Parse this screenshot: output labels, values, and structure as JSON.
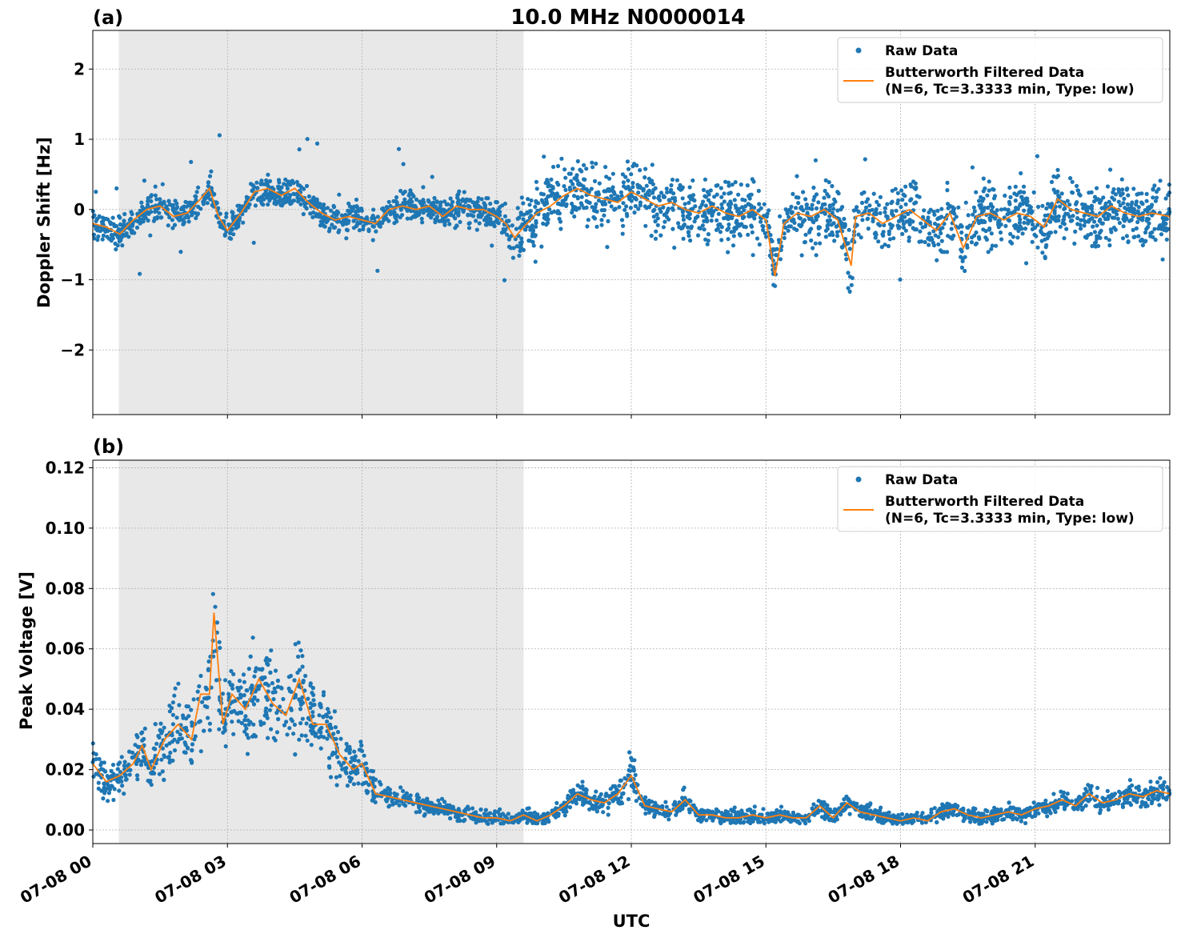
{
  "figure": {
    "title": "10.0 MHz N0000014",
    "xlabel": "UTC",
    "x_tick_labels": [
      "07-08 00",
      "07-08 03",
      "07-08 06",
      "07-08 09",
      "07-08 12",
      "07-08 15",
      "07-08 18",
      "07-08 21"
    ],
    "colors": {
      "raw": "#1f77b4",
      "filtered": "#ff7f0e",
      "shade": "#e8e8e8",
      "grid": "#b0b0b0"
    },
    "legend": {
      "raw_label": "Raw Data",
      "filtered_label_line1": "Butterworth Filtered Data",
      "filtered_label_line2": "(N=6, Tc=3.3333 min, Type: low)"
    }
  },
  "chart_data": [
    {
      "panel": "(a)",
      "type": "scatter",
      "ylabel": "Doppler Shift [Hz]",
      "x_unit": "hours UTC on 07-08",
      "xlim": [
        0,
        24
      ],
      "ylim": [
        -2.92,
        2.55
      ],
      "y_ticks": [
        -2,
        -1,
        0,
        1,
        2
      ],
      "y_tick_labels": [
        "−2",
        "−1",
        "0",
        "1",
        "2"
      ],
      "shaded_x_range": [
        0.58,
        9.6
      ],
      "grid": true,
      "legend_position": "top-right",
      "series": [
        {
          "name": "Butterworth Filtered Data",
          "kind": "line",
          "x": [
            0.0,
            0.3,
            0.6,
            0.9,
            1.2,
            1.5,
            1.8,
            2.1,
            2.4,
            2.6,
            2.8,
            3.0,
            3.3,
            3.6,
            3.9,
            4.2,
            4.5,
            4.8,
            5.1,
            5.4,
            5.7,
            6.0,
            6.3,
            6.6,
            6.9,
            7.2,
            7.5,
            7.8,
            8.1,
            8.4,
            8.7,
            9.0,
            9.2,
            9.4,
            9.6,
            9.9,
            10.2,
            10.5,
            10.8,
            11.1,
            11.4,
            11.7,
            12.0,
            12.3,
            12.6,
            12.9,
            13.2,
            13.5,
            13.8,
            14.1,
            14.4,
            14.7,
            15.0,
            15.2,
            15.4,
            15.7,
            16.0,
            16.3,
            16.6,
            16.9,
            17.0,
            17.3,
            17.6,
            17.9,
            18.2,
            18.5,
            18.8,
            19.1,
            19.4,
            19.7,
            20.0,
            20.3,
            20.6,
            20.9,
            21.2,
            21.5,
            21.8,
            22.1,
            22.4,
            22.7,
            23.0,
            23.3,
            23.6,
            24.0
          ],
          "y": [
            -0.2,
            -0.25,
            -0.35,
            -0.15,
            0.0,
            0.05,
            -0.1,
            -0.05,
            0.15,
            0.3,
            -0.1,
            -0.3,
            -0.05,
            0.25,
            0.3,
            0.2,
            0.3,
            0.1,
            -0.05,
            -0.15,
            -0.1,
            -0.15,
            -0.2,
            0.0,
            0.05,
            0.0,
            0.05,
            -0.1,
            0.05,
            0.0,
            0.0,
            -0.1,
            -0.2,
            -0.4,
            -0.25,
            -0.05,
            0.05,
            0.2,
            0.3,
            0.2,
            0.15,
            0.1,
            0.25,
            0.15,
            0.05,
            0.1,
            0.0,
            -0.05,
            0.05,
            -0.05,
            -0.1,
            0.0,
            -0.15,
            -0.95,
            -0.2,
            -0.05,
            -0.1,
            0.0,
            -0.15,
            -0.8,
            -0.1,
            -0.05,
            -0.2,
            -0.1,
            0.0,
            -0.15,
            -0.3,
            -0.05,
            -0.55,
            -0.1,
            -0.05,
            -0.15,
            -0.05,
            -0.1,
            -0.25,
            0.15,
            0.0,
            -0.05,
            -0.1,
            0.05,
            -0.05,
            -0.1,
            -0.05,
            -0.1
          ]
        }
      ]
    },
    {
      "panel": "(b)",
      "type": "scatter",
      "ylabel": "Peak Voltage [V]",
      "x_unit": "hours UTC on 07-08",
      "xlim": [
        0,
        24
      ],
      "ylim": [
        -0.0045,
        0.1225
      ],
      "y_ticks": [
        0.0,
        0.02,
        0.04,
        0.06,
        0.08,
        0.1,
        0.12
      ],
      "y_tick_labels": [
        "0.00",
        "0.02",
        "0.04",
        "0.06",
        "0.08",
        "0.10",
        "0.12"
      ],
      "shaded_x_range": [
        0.58,
        9.6
      ],
      "grid": true,
      "legend_position": "top-right",
      "series": [
        {
          "name": "Butterworth Filtered Data",
          "kind": "line",
          "x": [
            0.0,
            0.3,
            0.6,
            0.9,
            1.1,
            1.3,
            1.6,
            1.9,
            2.2,
            2.4,
            2.6,
            2.7,
            2.9,
            3.1,
            3.4,
            3.7,
            4.0,
            4.3,
            4.6,
            4.9,
            5.2,
            5.5,
            5.8,
            6.0,
            6.3,
            6.6,
            6.9,
            7.2,
            7.5,
            7.8,
            8.1,
            8.4,
            8.7,
            9.0,
            9.3,
            9.6,
            9.9,
            10.2,
            10.5,
            10.8,
            11.1,
            11.4,
            11.7,
            12.0,
            12.3,
            12.6,
            12.9,
            13.2,
            13.5,
            13.8,
            14.1,
            14.4,
            14.7,
            15.0,
            15.3,
            15.6,
            15.9,
            16.2,
            16.5,
            16.8,
            17.1,
            17.4,
            17.7,
            18.0,
            18.3,
            18.6,
            18.9,
            19.2,
            19.5,
            19.8,
            20.1,
            20.4,
            20.7,
            21.0,
            21.3,
            21.6,
            21.9,
            22.2,
            22.5,
            22.8,
            23.1,
            23.4,
            23.7,
            24.0
          ],
          "y": [
            0.022,
            0.016,
            0.018,
            0.022,
            0.028,
            0.02,
            0.03,
            0.035,
            0.03,
            0.045,
            0.045,
            0.072,
            0.035,
            0.045,
            0.04,
            0.05,
            0.042,
            0.038,
            0.05,
            0.035,
            0.035,
            0.025,
            0.02,
            0.022,
            0.012,
            0.011,
            0.01,
            0.009,
            0.008,
            0.007,
            0.006,
            0.005,
            0.004,
            0.004,
            0.003,
            0.005,
            0.003,
            0.005,
            0.008,
            0.012,
            0.01,
            0.009,
            0.012,
            0.018,
            0.008,
            0.007,
            0.006,
            0.01,
            0.005,
            0.005,
            0.004,
            0.004,
            0.005,
            0.004,
            0.005,
            0.004,
            0.004,
            0.008,
            0.004,
            0.009,
            0.006,
            0.005,
            0.004,
            0.003,
            0.004,
            0.003,
            0.006,
            0.007,
            0.005,
            0.004,
            0.005,
            0.006,
            0.005,
            0.007,
            0.008,
            0.01,
            0.008,
            0.012,
            0.009,
            0.01,
            0.012,
            0.011,
            0.013,
            0.012
          ]
        }
      ]
    }
  ]
}
